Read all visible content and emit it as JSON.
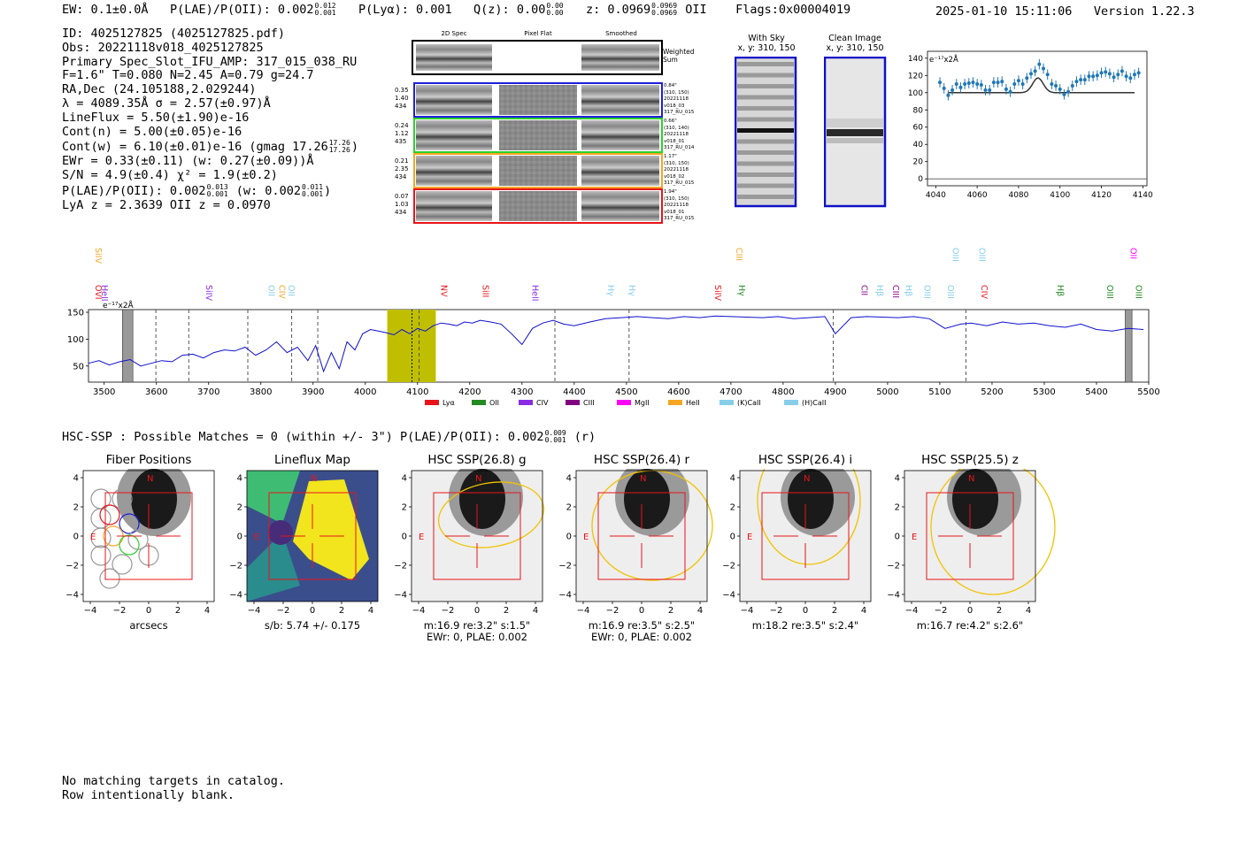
{
  "header": {
    "ew": "EW: 0.1±0.0Å",
    "plae": "P(LAE)/P(OII): 0.002",
    "plae_hi": "0.012",
    "plae_lo": "0.001",
    "plya": "P(Lyα): 0.001",
    "qz": "Q(z): 0.00",
    "qz_hi": "0.00",
    "qz_lo": "0.00",
    "z": "z: 0.0969",
    "z_hi": "0.0969",
    "z_lo": "0.0969",
    "z_line": "OII",
    "flags": "Flags:0x00004019",
    "datetime": "2025-01-10 15:11:06",
    "version": "Version 1.22.3"
  },
  "info": {
    "id": "ID: 4025127825 (4025127825.pdf)",
    "obs": "Obs: 20221118v018_4025127825",
    "primary": "Primary Spec_Slot_IFU_AMP: 317_015_038_RU",
    "fparams": "F=1.6\"  T=0.080  N=2.45  A=0.79  g=24.7",
    "radec": "RA,Dec (24.105188,2.029244)",
    "lambda": "λ = 4089.35Å   σ = 2.57(±0.97)Å",
    "lineflux": "LineFlux = 5.50(±1.90)e-16",
    "contn": "Cont(n) = 5.00(±0.05)e-16",
    "contw": "Cont(w) = 6.10(±0.01)e-16 (gmag 17.26",
    "contw_hi": "17.26",
    "contw_lo": "17.26",
    "contw_end": ")",
    "ewr": "EWr = 0.33(±0.11) (w: 0.27(±0.09))Å",
    "sn": "S/N = 4.9(±0.4)  χ² = 1.9(±0.2)",
    "plae2": "P(LAE)/P(OII): 0.002",
    "plae2_hi": "0.013",
    "plae2_lo": "0.001",
    "plae2_w": "(w: 0.002",
    "plae2_w_hi": "0.011",
    "plae2_w_lo": "0.001",
    "plae2_end": ")",
    "lyaz": "LyA z = 2.3639   OII z = 0.0970"
  },
  "cutouts": {
    "col_headers": [
      "2D Spec",
      "Pixel Flat",
      "Smoothed"
    ],
    "weighted_sum": "Weighted Sum",
    "rows": [
      {
        "left": [
          "0.35",
          "1.40",
          "434"
        ],
        "right": [
          "0.84\"",
          "(310, 150)",
          "20221118",
          "v018_03",
          "317_RU_015"
        ],
        "color": "#1f1fd6"
      },
      {
        "left": [
          "0.24",
          "1.12",
          "435"
        ],
        "right": [
          "0.66\"",
          "(310, 140)",
          "20221118",
          "v018_01",
          "317_RU_014"
        ],
        "color": "#2bd12b"
      },
      {
        "left": [
          "0.21",
          "2.35",
          "434"
        ],
        "right": [
          "1.17\"",
          "(310, 150)",
          "20221118",
          "v018_02",
          "317_RU_015"
        ],
        "color": "#f5a623"
      },
      {
        "left": [
          "0.07",
          "1.03",
          "434"
        ],
        "right": [
          "1.94\"",
          "(310, 150)",
          "20221118",
          "v018_01",
          "317_RU_015"
        ],
        "color": "#e8141a"
      }
    ],
    "with_sky_title": "With Sky",
    "with_sky_xy": "x, y: 310, 150",
    "clean_title": "Clean Image",
    "clean_xy": "x, y: 310, 150"
  },
  "chart_data": [
    {
      "type": "line",
      "name": "zoom-spectrum",
      "ylabel": "e⁻¹⁷x2Å",
      "x": [
        4042,
        4044,
        4046,
        4048,
        4050,
        4052,
        4054,
        4056,
        4058,
        4060,
        4062,
        4064,
        4066,
        4068,
        4070,
        4072,
        4074,
        4076,
        4078,
        4080,
        4082,
        4084,
        4086,
        4088,
        4090,
        4092,
        4094,
        4096,
        4098,
        4100,
        4102,
        4104,
        4106,
        4108,
        4110,
        4112,
        4114,
        4116,
        4118,
        4120,
        4122,
        4124,
        4126,
        4128,
        4130,
        4132,
        4134,
        4136,
        4138
      ],
      "values": [
        112,
        105,
        97,
        103,
        110,
        106,
        110,
        111,
        112,
        110,
        109,
        103,
        103,
        112,
        112,
        113,
        104,
        101,
        110,
        114,
        110,
        117,
        122,
        125,
        133,
        128,
        121,
        110,
        108,
        104,
        98,
        101,
        108,
        113,
        115,
        115,
        119,
        119,
        120,
        123,
        124,
        122,
        118,
        121,
        125,
        119,
        117,
        121,
        123
      ],
      "errors": [
        6,
        6,
        6,
        6,
        6,
        6,
        6,
        6,
        6,
        6,
        6,
        6,
        6,
        6,
        6,
        6,
        6,
        6,
        6,
        6,
        6,
        6,
        6,
        6,
        6,
        6,
        6,
        6,
        6,
        6,
        6,
        6,
        6,
        6,
        6,
        6,
        6,
        6,
        6,
        6,
        6,
        6,
        6,
        6,
        6,
        6,
        6,
        6,
        6
      ],
      "model": {
        "baseline": 100,
        "center": 4089.35,
        "amplitude": 17,
        "sigma": 2.57,
        "x_range": [
          4046,
          4136
        ]
      },
      "xlim": [
        4036,
        4142
      ],
      "ylim": [
        -8,
        148
      ],
      "xticks": [
        4040,
        4060,
        4080,
        4100,
        4120,
        4140
      ],
      "yticks": [
        0,
        20,
        40,
        60,
        80,
        100,
        120,
        140
      ]
    },
    {
      "type": "line",
      "name": "full-spectrum",
      "ylabel": "e⁻¹⁷x2Å",
      "xlim": [
        3470,
        5500
      ],
      "ylim": [
        20,
        155
      ],
      "xticks": [
        3500,
        3600,
        3700,
        3800,
        3900,
        4000,
        4100,
        4200,
        4300,
        4400,
        4500,
        4600,
        4700,
        4800,
        4900,
        5000,
        5100,
        5200,
        5300,
        5400,
        5500
      ],
      "yticks": [
        50,
        100,
        150
      ],
      "x": [
        3470,
        3490,
        3510,
        3530,
        3550,
        3570,
        3590,
        3610,
        3630,
        3650,
        3670,
        3690,
        3710,
        3730,
        3750,
        3770,
        3790,
        3810,
        3830,
        3850,
        3870,
        3890,
        3905,
        3920,
        3935,
        3950,
        3965,
        3980,
        3995,
        4010,
        4025,
        4040,
        4055,
        4070,
        4085,
        4100,
        4115,
        4130,
        4145,
        4160,
        4175,
        4190,
        4205,
        4220,
        4240,
        4260,
        4280,
        4300,
        4320,
        4340,
        4360,
        4380,
        4400,
        4430,
        4460,
        4490,
        4520,
        4550,
        4580,
        4610,
        4640,
        4670,
        4700,
        4730,
        4760,
        4790,
        4820,
        4850,
        4880,
        4900,
        4930,
        4960,
        4990,
        5020,
        5050,
        5080,
        5110,
        5140,
        5160,
        5190,
        5220,
        5250,
        5280,
        5310,
        5340,
        5370,
        5400,
        5430,
        5460,
        5490
      ],
      "values": [
        55,
        60,
        52,
        58,
        62,
        50,
        55,
        60,
        58,
        70,
        72,
        65,
        75,
        80,
        78,
        85,
        70,
        80,
        95,
        75,
        85,
        60,
        88,
        40,
        75,
        45,
        95,
        80,
        110,
        118,
        115,
        112,
        108,
        118,
        110,
        120,
        115,
        125,
        130,
        128,
        125,
        132,
        130,
        135,
        132,
        128,
        110,
        90,
        120,
        130,
        135,
        128,
        125,
        132,
        138,
        140,
        142,
        140,
        138,
        142,
        140,
        143,
        142,
        141,
        140,
        142,
        138,
        140,
        142,
        110,
        140,
        142,
        141,
        140,
        142,
        138,
        120,
        128,
        130,
        125,
        132,
        128,
        130,
        125,
        122,
        128,
        118,
        115,
        120,
        118
      ],
      "highlight_region": [
        4042,
        4135
      ],
      "emission_marker": 4089.35,
      "dashed_lines": [
        3599,
        3662,
        3775,
        3859,
        3909,
        4103,
        4363,
        4505,
        4896,
        5150
      ],
      "hatched_regions": [
        [
          3535,
          3555
        ],
        [
          3460,
          3470
        ]
      ],
      "line_labels": [
        {
          "text": "SiIV",
          "x": 3458,
          "color": "#f5a623",
          "row": 0
        },
        {
          "text": "OVI",
          "x": 3460,
          "color": "#e8141a",
          "row": 1
        },
        {
          "text": "HeII",
          "x": 3490,
          "color": "#8a2be2",
          "row": 1
        },
        {
          "text": "SiIV",
          "x": 3690,
          "color": "#8a2be2",
          "row": 1
        },
        {
          "text": "OII",
          "x": 3810,
          "color": "#87ceeb",
          "row": 1
        },
        {
          "text": "CIV",
          "x": 3830,
          "color": "#f5a623",
          "row": 1
        },
        {
          "text": "OII",
          "x": 3848,
          "color": "#87ceeb",
          "row": 1
        },
        {
          "text": "NV",
          "x": 4140,
          "color": "#e8141a",
          "row": 1
        },
        {
          "text": "SiII",
          "x": 4220,
          "color": "#e8141a",
          "row": 1
        },
        {
          "text": "HeII",
          "x": 4315,
          "color": "#8a2be2",
          "row": 1
        },
        {
          "text": "Hγ",
          "x": 4460,
          "color": "#87ceeb",
          "row": 1
        },
        {
          "text": "Hγ",
          "x": 4500,
          "color": "#87ceeb",
          "row": 1
        },
        {
          "text": "SiIV",
          "x": 4665,
          "color": "#e8141a",
          "row": 1
        },
        {
          "text": "CIII",
          "x": 4705,
          "color": "#f5a623",
          "row": 0
        },
        {
          "text": "Hγ",
          "x": 4710,
          "color": "#228b22",
          "row": 1
        },
        {
          "text": "CII",
          "x": 4945,
          "color": "#8b008b",
          "row": 1
        },
        {
          "text": "Hβ",
          "x": 4975,
          "color": "#87ceeb",
          "row": 1
        },
        {
          "text": "CIII",
          "x": 5005,
          "color": "#8b008b",
          "row": 1
        },
        {
          "text": "Hβ",
          "x": 5030,
          "color": "#87ceeb",
          "row": 1
        },
        {
          "text": "OIII",
          "x": 5065,
          "color": "#87ceeb",
          "row": 1
        },
        {
          "text": "OIII",
          "x": 5120,
          "color": "#87ceeb",
          "row": 0
        },
        {
          "text": "OIII",
          "x": 5110,
          "color": "#87ceeb",
          "row": 1
        },
        {
          "text": "OIII",
          "x": 5170,
          "color": "#87ceeb",
          "row": 0
        },
        {
          "text": "CIV",
          "x": 5175,
          "color": "#e8141a",
          "row": 1
        },
        {
          "text": "Hβ",
          "x": 5320,
          "color": "#228b22",
          "row": 1
        },
        {
          "text": "OIII",
          "x": 5415,
          "color": "#228b22",
          "row": 1
        },
        {
          "text": "OII",
          "x": 5460,
          "color": "#ff00ff",
          "row": 0
        },
        {
          "text": "OIII",
          "x": 5470,
          "color": "#228b22",
          "row": 1
        }
      ],
      "legend": [
        {
          "label": "Lyα",
          "color": "#e8141a"
        },
        {
          "label": "OII",
          "color": "#228b22"
        },
        {
          "label": "CIV",
          "color": "#8a2be2"
        },
        {
          "label": "CIII",
          "color": "#800080"
        },
        {
          "label": "MgII",
          "color": "#ff00ff"
        },
        {
          "label": "HeII",
          "color": "#f5a623"
        },
        {
          "label": "(K)CaII",
          "color": "#87ceeb"
        },
        {
          "label": "(H)CaII",
          "color": "#87ceeb"
        }
      ]
    }
  ],
  "hsc": {
    "summary": "HSC-SSP : Possible Matches = 0 (within +/- 3\")  P(LAE)/P(OII): 0.002",
    "summary_hi": "0.009",
    "summary_lo": "0.001",
    "summary_end": "(r)",
    "panels": [
      {
        "title": "Fiber Positions",
        "caption1": "arcsecs",
        "caption2": ""
      },
      {
        "title": "Lineflux Map",
        "caption1": "s/b: 5.74 +/- 0.175",
        "caption2": ""
      },
      {
        "title": "HSC SSP(26.8) g",
        "caption1": "m:16.9  re:3.2\"  s:1.5\"",
        "caption2": "EWr: 0, PLAE: 0.002"
      },
      {
        "title": "HSC SSP(26.4) r",
        "caption1": "m:16.9  re:3.5\"  s:2.5\"",
        "caption2": "EWr: 0, PLAE: 0.002"
      },
      {
        "title": "HSC SSP(26.4) i",
        "caption1": "m:18.2  re:3.5\"  s:2.4\"",
        "caption2": ""
      },
      {
        "title": "HSC SSP(25.5) z",
        "caption1": "m:16.7  re:4.2\"  s:2.6\"",
        "caption2": ""
      }
    ],
    "compass_n": "N",
    "compass_e": "E",
    "axis_ticks": [
      "−4",
      "−2",
      "0",
      "2",
      "4"
    ]
  },
  "footer": {
    "line1": "No matching targets in catalog.",
    "line2": "Row intentionally blank."
  }
}
